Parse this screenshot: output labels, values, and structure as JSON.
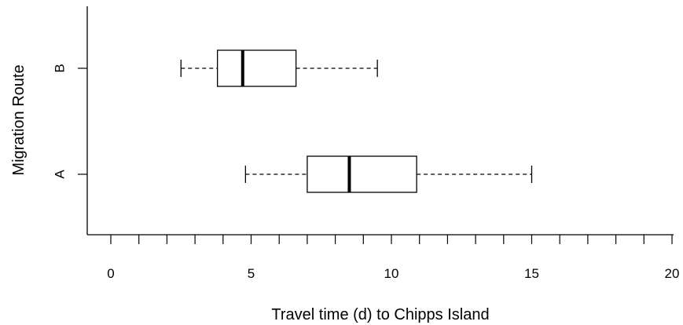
{
  "chart_data": {
    "type": "boxplot",
    "orientation": "horizontal",
    "title": "",
    "xlabel": "Travel time (d) to Chipps Island",
    "ylabel": "Migration Route",
    "xlim": [
      -1,
      20
    ],
    "x_ticks_labeled": [
      "0",
      "5",
      "10",
      "15",
      "20"
    ],
    "x_tick_values_labeled": [
      0,
      5,
      10,
      15,
      20
    ],
    "x_minor_tick_step": 1,
    "categories": [
      "A",
      "B"
    ],
    "boxes": [
      {
        "category": "A",
        "whisker_low": 4.8,
        "q1": 7.0,
        "median": 8.5,
        "q3": 10.9,
        "whisker_high": 15.0
      },
      {
        "category": "B",
        "whisker_low": 2.5,
        "q1": 3.8,
        "median": 4.7,
        "q3": 6.6,
        "whisker_high": 9.5
      }
    ],
    "grid": false,
    "legend": "none"
  }
}
